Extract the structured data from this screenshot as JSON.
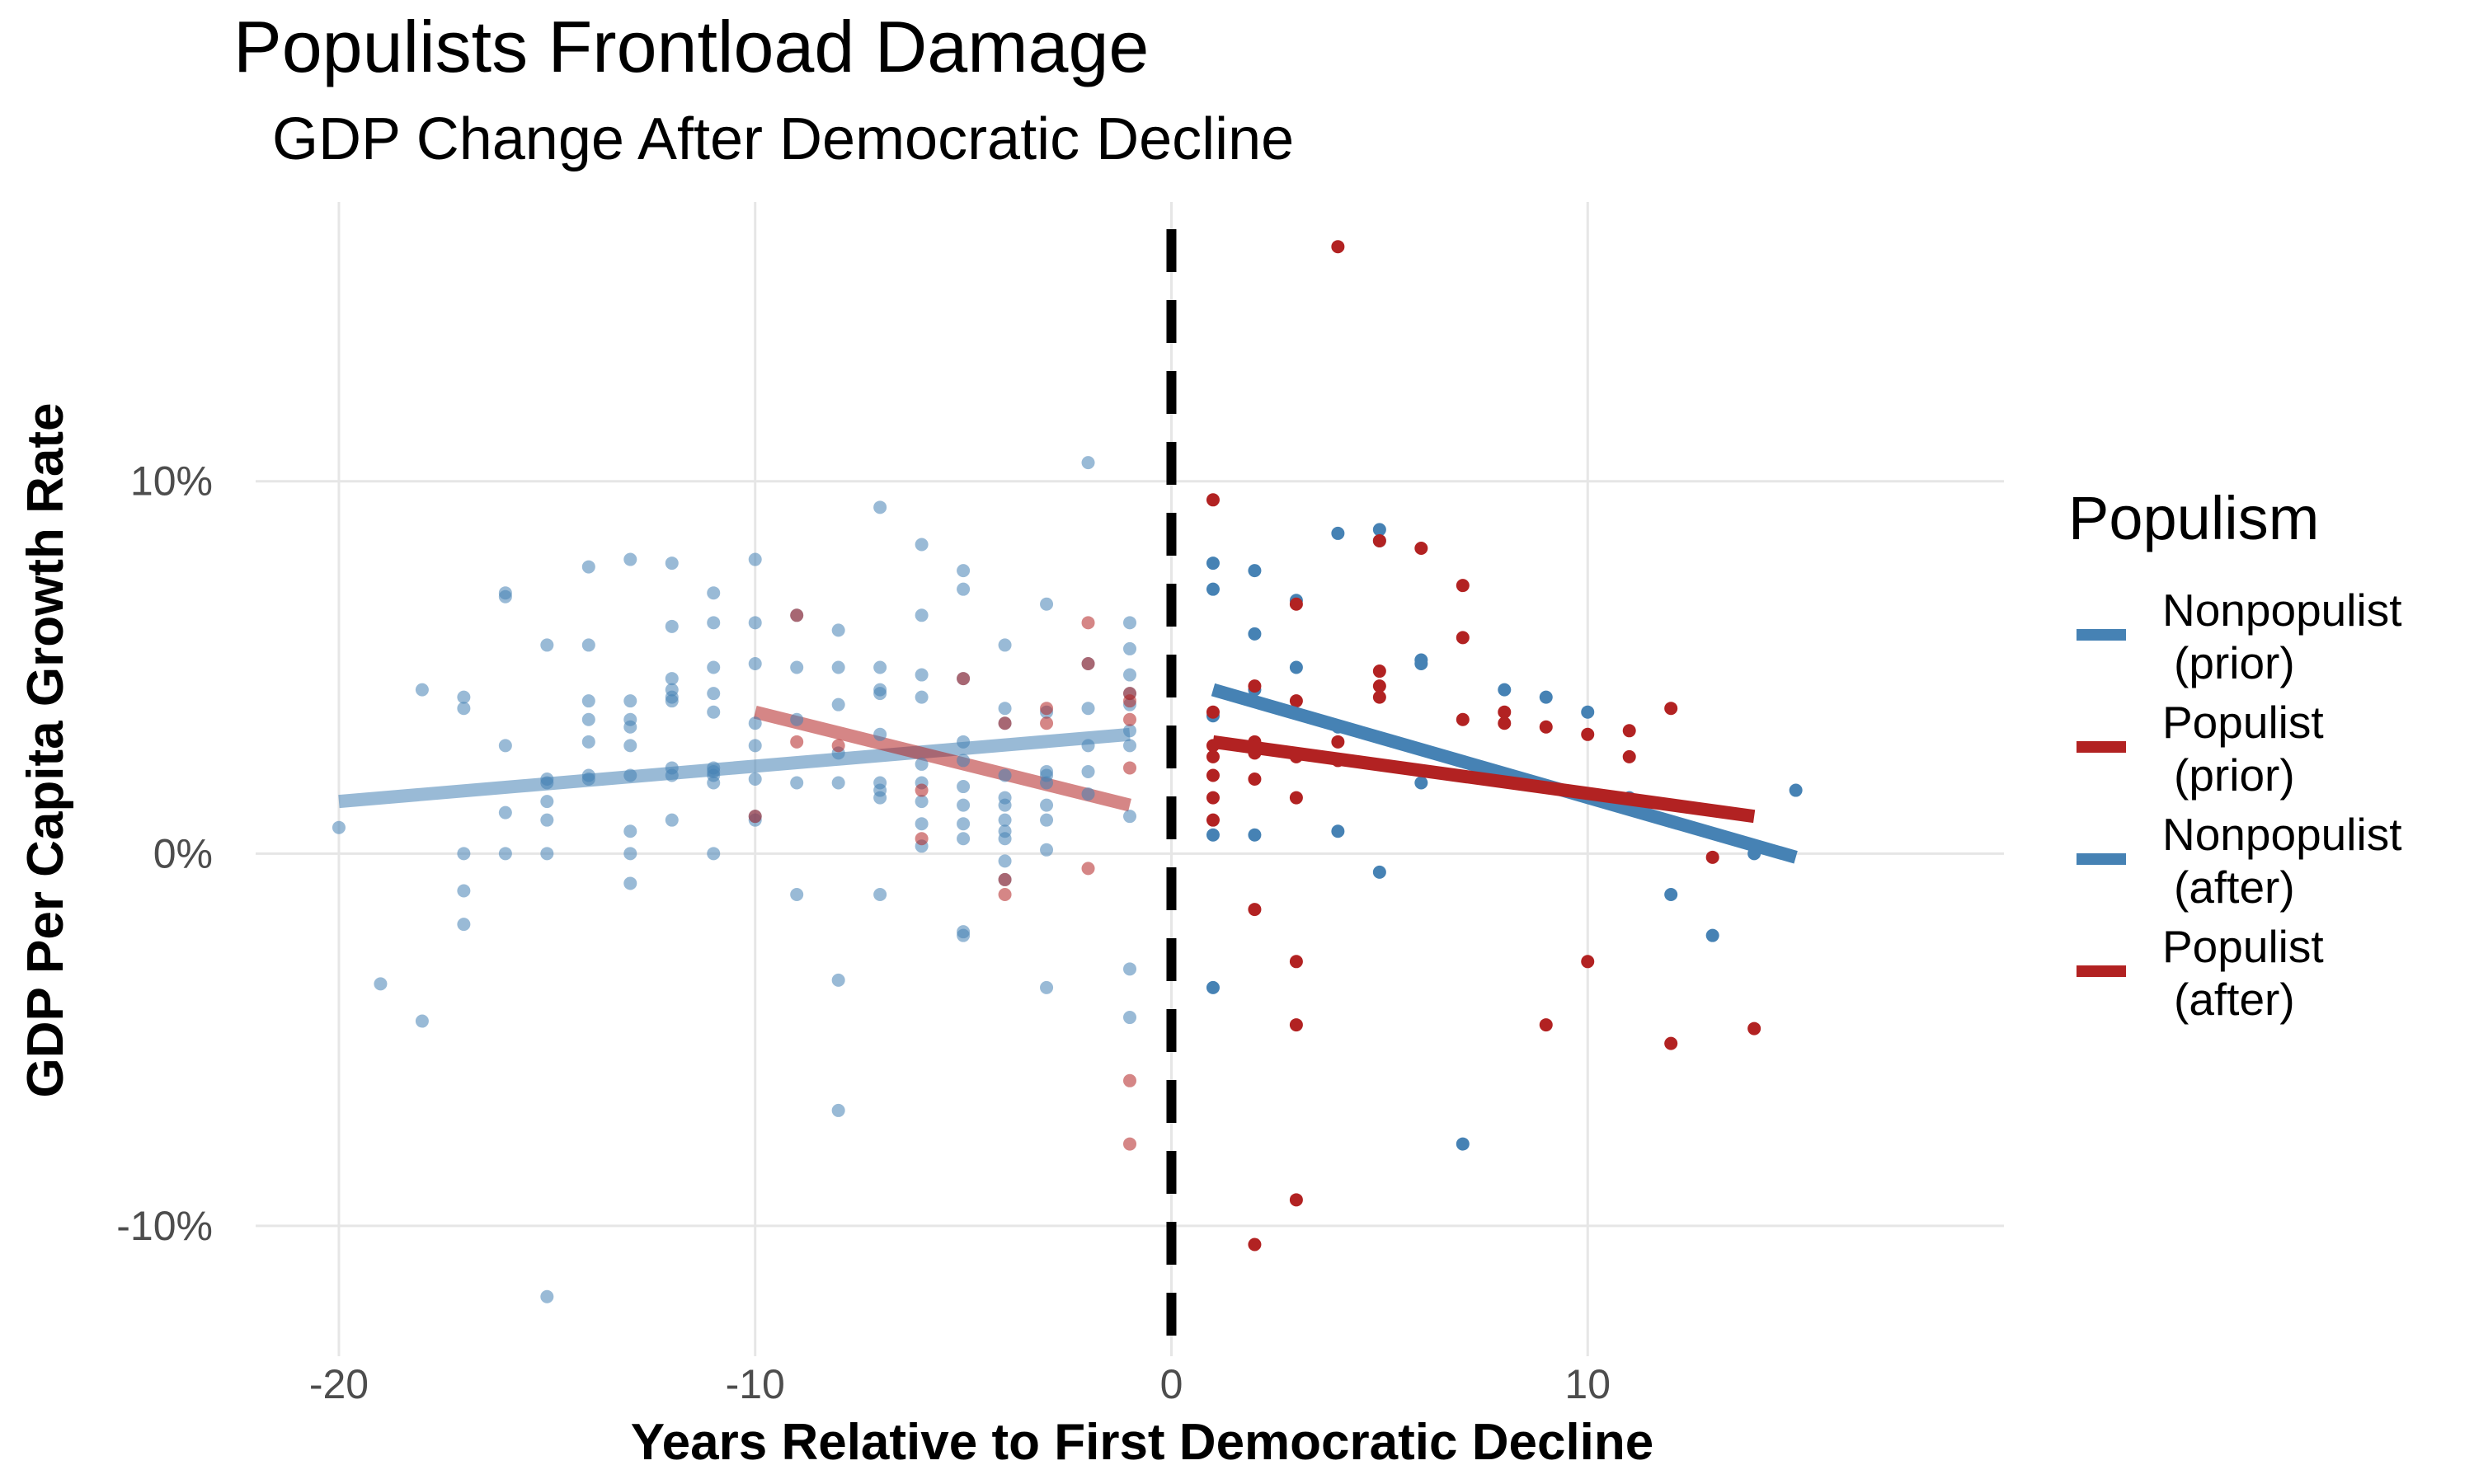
{
  "chart_data": {
    "type": "scatter",
    "title": "Populists Frontload Damage",
    "subtitle": "GDP Change After Democratic Decline",
    "xlabel": "Years Relative to First Democratic Decline",
    "ylabel": "GDP Per Capita Growth Rate",
    "xlim": [
      -22,
      20
    ],
    "ylim": [
      -13.5,
      17.5
    ],
    "x_ticks": [
      -20,
      -10,
      0,
      10
    ],
    "x_tick_labels": [
      "-20",
      "-10",
      "0",
      "10"
    ],
    "y_ticks": [
      -10,
      0,
      10
    ],
    "y_tick_labels": [
      "-10%",
      "0%",
      "10%"
    ],
    "grid": true,
    "legend": {
      "title": "Populism",
      "position": "right"
    },
    "reference_line": {
      "x": 0,
      "style": "dashed",
      "color": "#000000"
    },
    "series": [
      {
        "name": "Nonpopulist\n (prior)",
        "color": "#4682b4",
        "opacity": 0.55,
        "points": [
          [
            -20,
            0.7
          ],
          [
            -19,
            -3.5
          ],
          [
            -18,
            4.4
          ],
          [
            -18,
            -4.5
          ],
          [
            -17,
            4.2
          ],
          [
            -17,
            3.9
          ],
          [
            -17,
            0
          ],
          [
            -17,
            -1
          ],
          [
            -17,
            -1.9
          ],
          [
            -16,
            7
          ],
          [
            -16,
            6.9
          ],
          [
            -16,
            2.9
          ],
          [
            -16,
            1.1
          ],
          [
            -16,
            0
          ],
          [
            -15,
            5.6
          ],
          [
            -15,
            2
          ],
          [
            -15,
            1.9
          ],
          [
            -15,
            1.4
          ],
          [
            -15,
            0.9
          ],
          [
            -15,
            0
          ],
          [
            -15,
            -11.9
          ],
          [
            -14,
            7.7
          ],
          [
            -14,
            5.6
          ],
          [
            -14,
            4.1
          ],
          [
            -14,
            3.6
          ],
          [
            -14,
            3
          ],
          [
            -14,
            2.1
          ],
          [
            -14,
            2
          ],
          [
            -13,
            7.9
          ],
          [
            -13,
            4.1
          ],
          [
            -13,
            3.6
          ],
          [
            -13,
            3.4
          ],
          [
            -13,
            2.9
          ],
          [
            -13,
            2.1
          ],
          [
            -13,
            0.6
          ],
          [
            -13,
            0
          ],
          [
            -13,
            -0.8
          ],
          [
            -12,
            7.8
          ],
          [
            -12,
            6.1
          ],
          [
            -12,
            4.7
          ],
          [
            -12,
            4.4
          ],
          [
            -12,
            4.2
          ],
          [
            -12,
            4.1
          ],
          [
            -12,
            2.3
          ],
          [
            -12,
            2.1
          ],
          [
            -12,
            0.9
          ],
          [
            -11,
            7
          ],
          [
            -11,
            6.2
          ],
          [
            -11,
            5
          ],
          [
            -11,
            4.3
          ],
          [
            -11,
            3.8
          ],
          [
            -11,
            2.3
          ],
          [
            -11,
            2.2
          ],
          [
            -11,
            2.1
          ],
          [
            -11,
            1.9
          ],
          [
            -11,
            0
          ],
          [
            -10,
            7.9
          ],
          [
            -10,
            6.2
          ],
          [
            -10,
            5.1
          ],
          [
            -10,
            3.5
          ],
          [
            -10,
            2.9
          ],
          [
            -10,
            2
          ],
          [
            -10,
            1
          ],
          [
            -10,
            0.9
          ],
          [
            -9,
            6.4
          ],
          [
            -9,
            5
          ],
          [
            -9,
            3.6
          ],
          [
            -9,
            1.9
          ],
          [
            -9,
            -1.1
          ],
          [
            -8,
            6
          ],
          [
            -8,
            5
          ],
          [
            -8,
            4
          ],
          [
            -8,
            2.7
          ],
          [
            -8,
            1.9
          ],
          [
            -8,
            -3.4
          ],
          [
            -8,
            -6.9
          ],
          [
            -7,
            9.3
          ],
          [
            -7,
            5
          ],
          [
            -7,
            4.4
          ],
          [
            -7,
            4.3
          ],
          [
            -7,
            3.2
          ],
          [
            -7,
            1.9
          ],
          [
            -7,
            1.7
          ],
          [
            -7,
            1.5
          ],
          [
            -7,
            -1.1
          ],
          [
            -6,
            8.3
          ],
          [
            -6,
            6.4
          ],
          [
            -6,
            4.8
          ],
          [
            -6,
            4.2
          ],
          [
            -6,
            2.4
          ],
          [
            -6,
            1.9
          ],
          [
            -6,
            1.4
          ],
          [
            -6,
            0.8
          ],
          [
            -6,
            0.2
          ],
          [
            -5,
            7.6
          ],
          [
            -5,
            7.1
          ],
          [
            -5,
            4.7
          ],
          [
            -5,
            3
          ],
          [
            -5,
            2.5
          ],
          [
            -5,
            1.8
          ],
          [
            -5,
            1.3
          ],
          [
            -5,
            0.8
          ],
          [
            -5,
            0.4
          ],
          [
            -5,
            -2.1
          ],
          [
            -5,
            -2.2
          ],
          [
            -4,
            5.6
          ],
          [
            -4,
            3.9
          ],
          [
            -4,
            3.5
          ],
          [
            -4,
            2.1
          ],
          [
            -4,
            1.5
          ],
          [
            -4,
            1.3
          ],
          [
            -4,
            0.9
          ],
          [
            -4,
            0.6
          ],
          [
            -4,
            0.4
          ],
          [
            -4,
            -0.2
          ],
          [
            -4,
            -0.7
          ],
          [
            -3,
            6.7
          ],
          [
            -3,
            3.8
          ],
          [
            -3,
            2.2
          ],
          [
            -3,
            2.1
          ],
          [
            -3,
            1.9
          ],
          [
            -3,
            1.3
          ],
          [
            -3,
            0.9
          ],
          [
            -3,
            0.1
          ],
          [
            -3,
            -3.6
          ],
          [
            -2,
            10.5
          ],
          [
            -2,
            5.1
          ],
          [
            -2,
            3.9
          ],
          [
            -2,
            2.9
          ],
          [
            -2,
            2.2
          ],
          [
            -2,
            1.6
          ],
          [
            -1,
            6.2
          ],
          [
            -1,
            5.5
          ],
          [
            -1,
            4.8
          ],
          [
            -1,
            4.3
          ],
          [
            -1,
            4
          ],
          [
            -1,
            3.3
          ],
          [
            -1,
            2.9
          ],
          [
            -1,
            1
          ],
          [
            -1,
            -3.1
          ],
          [
            -1,
            -4.4
          ]
        ]
      },
      {
        "name": "Populist\n (prior)",
        "color": "#b22222",
        "opacity": 0.55,
        "points": [
          [
            -10,
            1
          ],
          [
            -9,
            6.4
          ],
          [
            -9,
            3
          ],
          [
            -8,
            2.9
          ],
          [
            -6,
            1.7
          ],
          [
            -6,
            0.4
          ],
          [
            -5,
            4.7
          ],
          [
            -4,
            3.5
          ],
          [
            -4,
            -0.7
          ],
          [
            -4,
            -1.1
          ],
          [
            -3,
            3.9
          ],
          [
            -3,
            3.5
          ],
          [
            -2,
            6.2
          ],
          [
            -2,
            5.1
          ],
          [
            -2,
            -0.4
          ],
          [
            -1,
            4.3
          ],
          [
            -1,
            4.1
          ],
          [
            -1,
            3.6
          ],
          [
            -1,
            2.3
          ],
          [
            -1,
            -6.1
          ],
          [
            -1,
            -7.8
          ]
        ]
      },
      {
        "name": "Nonpopulist\n(after)",
        "color": "#4682b4",
        "opacity": 1,
        "points": [
          [
            1,
            7.8
          ],
          [
            1,
            7.1
          ],
          [
            1,
            3.7
          ],
          [
            1,
            0.5
          ],
          [
            1,
            -3.6
          ],
          [
            2,
            7.6
          ],
          [
            2,
            5.9
          ],
          [
            2,
            4.4
          ],
          [
            2,
            0.5
          ],
          [
            3,
            6.8
          ],
          [
            3,
            5
          ],
          [
            4,
            8.6
          ],
          [
            4,
            3.4
          ],
          [
            4,
            0.6
          ],
          [
            5,
            8.7
          ],
          [
            5,
            8.4
          ],
          [
            5,
            -0.5
          ],
          [
            6,
            5.2
          ],
          [
            6,
            5.1
          ],
          [
            6,
            1.9
          ],
          [
            7,
            -7.8
          ],
          [
            8,
            4.4
          ],
          [
            9,
            4.2
          ],
          [
            10,
            3.8
          ],
          [
            11,
            1.5
          ],
          [
            12,
            -1.1
          ],
          [
            13,
            -2.2
          ],
          [
            14,
            0
          ],
          [
            15,
            1.7
          ]
        ]
      },
      {
        "name": "Populist\n(after)",
        "color": "#b22222",
        "opacity": 1,
        "points": [
          [
            1,
            9.5
          ],
          [
            1,
            3.8
          ],
          [
            1,
            2.9
          ],
          [
            1,
            2.6
          ],
          [
            1,
            2.1
          ],
          [
            1,
            1.5
          ],
          [
            1,
            0.9
          ],
          [
            2,
            4.5
          ],
          [
            2,
            3
          ],
          [
            2,
            2.7
          ],
          [
            2,
            2
          ],
          [
            2,
            -1.5
          ],
          [
            2,
            -10.5
          ],
          [
            3,
            6.7
          ],
          [
            3,
            4.1
          ],
          [
            3,
            2.6
          ],
          [
            3,
            1.5
          ],
          [
            3,
            -2.9
          ],
          [
            3,
            -4.6
          ],
          [
            3,
            -9.3
          ],
          [
            4,
            16.3
          ],
          [
            4,
            3
          ],
          [
            4,
            2.5
          ],
          [
            5,
            8.4
          ],
          [
            5,
            4.9
          ],
          [
            5,
            4.5
          ],
          [
            5,
            4.2
          ],
          [
            6,
            8.2
          ],
          [
            7,
            7.2
          ],
          [
            7,
            5.8
          ],
          [
            7,
            3.6
          ],
          [
            8,
            3.8
          ],
          [
            8,
            3.5
          ],
          [
            9,
            3.4
          ],
          [
            9,
            -4.6
          ],
          [
            10,
            3.2
          ],
          [
            10,
            -2.9
          ],
          [
            11,
            3.3
          ],
          [
            11,
            2.6
          ],
          [
            12,
            3.9
          ],
          [
            12,
            -5.1
          ],
          [
            13,
            -0.1
          ],
          [
            14,
            -4.7
          ]
        ]
      }
    ],
    "trend_lines": [
      {
        "series": "Nonpopulist\n (prior)",
        "x": [
          -20,
          -1
        ],
        "y": [
          1.4,
          3.2
        ],
        "color": "#4682b4",
        "opacity": 0.55
      },
      {
        "series": "Populist\n (prior)",
        "x": [
          -10,
          -1
        ],
        "y": [
          3.8,
          1.3
        ],
        "color": "#b22222",
        "opacity": 0.55
      },
      {
        "series": "Nonpopulist\n(after)",
        "x": [
          1,
          15
        ],
        "y": [
          4.4,
          -0.1
        ],
        "color": "#4682b4",
        "opacity": 1
      },
      {
        "series": "Populist\n(after)",
        "x": [
          1,
          14
        ],
        "y": [
          3.0,
          1.0
        ],
        "color": "#b22222",
        "opacity": 1
      }
    ]
  },
  "legend_items": [
    {
      "line1": "Nonpopulist",
      "line2": "(prior)",
      "color": "#4682b4"
    },
    {
      "line1": "Populist",
      "line2": "(prior)",
      "color": "#b22222"
    },
    {
      "line1": "Nonpopulist",
      "line2": "(after)",
      "color": "#4682b4"
    },
    {
      "line1": "Populist",
      "line2": "(after)",
      "color": "#b22222"
    }
  ]
}
